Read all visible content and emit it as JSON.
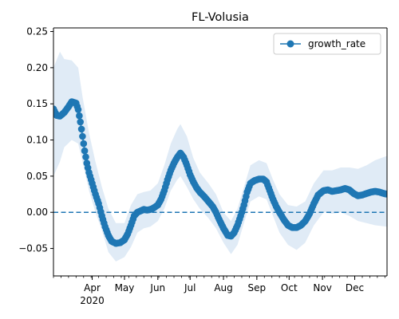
{
  "chart_data": {
    "type": "line",
    "title": "FL-Volusia",
    "xlabel": "",
    "ylabel": "",
    "x_range": [
      "2020-02-25",
      "2020-12-31"
    ],
    "ylim": [
      -0.088,
      0.255
    ],
    "grid": false,
    "legend": {
      "placement": "top-right",
      "entries": [
        "growth_rate"
      ]
    },
    "colors": {
      "series": "#1f77b4",
      "band": "#c6dbef",
      "zero_line": "#1f77b4"
    },
    "y_ticks": [
      -0.05,
      0.0,
      0.05,
      0.1,
      0.15,
      0.2,
      0.25
    ],
    "y_tick_labels": [
      "−0.05",
      "0.00",
      "0.05",
      "0.10",
      "0.15",
      "0.20",
      "0.25"
    ],
    "x_ticks": [
      {
        "date": "2020-04-01",
        "label": "Apr",
        "sublabel": "2020"
      },
      {
        "date": "2020-05-01",
        "label": "May"
      },
      {
        "date": "2020-06-01",
        "label": "Jun"
      },
      {
        "date": "2020-07-01",
        "label": "Jul"
      },
      {
        "date": "2020-08-01",
        "label": "Aug"
      },
      {
        "date": "2020-09-01",
        "label": "Sep"
      },
      {
        "date": "2020-10-01",
        "label": "Oct"
      },
      {
        "date": "2020-11-01",
        "label": "Nov"
      },
      {
        "date": "2020-12-01",
        "label": "Dec"
      }
    ],
    "reference_line": {
      "y": 0.0,
      "style": "dashed"
    },
    "series": [
      {
        "name": "growth_rate",
        "style": "line-with-markers",
        "points": [
          [
            "2020-02-25",
            0.143
          ],
          [
            "2020-02-28",
            0.134
          ],
          [
            "2020-03-02",
            0.133
          ],
          [
            "2020-03-06",
            0.138
          ],
          [
            "2020-03-10",
            0.146
          ],
          [
            "2020-03-13",
            0.153
          ],
          [
            "2020-03-17",
            0.151
          ],
          [
            "2020-03-19",
            0.142
          ],
          [
            "2020-03-21",
            0.125
          ],
          [
            "2020-03-23",
            0.105
          ],
          [
            "2020-03-25",
            0.085
          ],
          [
            "2020-03-27",
            0.068
          ],
          [
            "2020-03-29",
            0.055
          ],
          [
            "2020-04-01",
            0.04
          ],
          [
            "2020-04-04",
            0.025
          ],
          [
            "2020-04-07",
            0.012
          ],
          [
            "2020-04-10",
            -0.005
          ],
          [
            "2020-04-13",
            -0.02
          ],
          [
            "2020-04-16",
            -0.032
          ],
          [
            "2020-04-19",
            -0.04
          ],
          [
            "2020-04-23",
            -0.043
          ],
          [
            "2020-04-27",
            -0.042
          ],
          [
            "2020-05-01",
            -0.038
          ],
          [
            "2020-05-04",
            -0.03
          ],
          [
            "2020-05-07",
            -0.018
          ],
          [
            "2020-05-10",
            -0.005
          ],
          [
            "2020-05-13",
            0.0
          ],
          [
            "2020-05-16",
            0.002
          ],
          [
            "2020-05-19",
            0.004
          ],
          [
            "2020-05-22",
            0.003
          ],
          [
            "2020-05-25",
            0.004
          ],
          [
            "2020-05-28",
            0.006
          ],
          [
            "2020-06-01",
            0.01
          ],
          [
            "2020-06-04",
            0.018
          ],
          [
            "2020-06-07",
            0.03
          ],
          [
            "2020-06-10",
            0.045
          ],
          [
            "2020-06-13",
            0.058
          ],
          [
            "2020-06-16",
            0.068
          ],
          [
            "2020-06-19",
            0.076
          ],
          [
            "2020-06-22",
            0.082
          ],
          [
            "2020-06-25",
            0.076
          ],
          [
            "2020-06-28",
            0.065
          ],
          [
            "2020-07-01",
            0.052
          ],
          [
            "2020-07-04",
            0.042
          ],
          [
            "2020-07-07",
            0.034
          ],
          [
            "2020-07-10",
            0.028
          ],
          [
            "2020-07-14",
            0.022
          ],
          [
            "2020-07-18",
            0.015
          ],
          [
            "2020-07-22",
            0.008
          ],
          [
            "2020-07-25",
            0.0
          ],
          [
            "2020-07-28",
            -0.01
          ],
          [
            "2020-08-01",
            -0.022
          ],
          [
            "2020-08-05",
            -0.032
          ],
          [
            "2020-08-08",
            -0.033
          ],
          [
            "2020-08-11",
            -0.028
          ],
          [
            "2020-08-14",
            -0.018
          ],
          [
            "2020-08-17",
            -0.005
          ],
          [
            "2020-08-20",
            0.01
          ],
          [
            "2020-08-23",
            0.028
          ],
          [
            "2020-08-26",
            0.04
          ],
          [
            "2020-08-30",
            0.044
          ],
          [
            "2020-09-03",
            0.046
          ],
          [
            "2020-09-07",
            0.046
          ],
          [
            "2020-09-10",
            0.042
          ],
          [
            "2020-09-13",
            0.03
          ],
          [
            "2020-09-16",
            0.018
          ],
          [
            "2020-09-19",
            0.008
          ],
          [
            "2020-09-22",
            0.0
          ],
          [
            "2020-09-26",
            -0.01
          ],
          [
            "2020-09-30",
            -0.018
          ],
          [
            "2020-10-04",
            -0.021
          ],
          [
            "2020-10-08",
            -0.021
          ],
          [
            "2020-10-12",
            -0.018
          ],
          [
            "2020-10-16",
            -0.012
          ],
          [
            "2020-10-20",
            -0.002
          ],
          [
            "2020-10-24",
            0.012
          ],
          [
            "2020-10-28",
            0.024
          ],
          [
            "2020-11-02",
            0.03
          ],
          [
            "2020-11-06",
            0.031
          ],
          [
            "2020-11-10",
            0.029
          ],
          [
            "2020-11-14",
            0.03
          ],
          [
            "2020-11-18",
            0.031
          ],
          [
            "2020-11-22",
            0.033
          ],
          [
            "2020-11-26",
            0.031
          ],
          [
            "2020-11-30",
            0.026
          ],
          [
            "2020-12-04",
            0.023
          ],
          [
            "2020-12-08",
            0.024
          ],
          [
            "2020-12-12",
            0.026
          ],
          [
            "2020-12-16",
            0.028
          ],
          [
            "2020-12-20",
            0.029
          ],
          [
            "2020-12-24",
            0.028
          ],
          [
            "2020-12-28",
            0.026
          ],
          [
            "2020-12-31",
            0.025
          ]
        ],
        "uncertainty_band": [
          [
            "2020-02-25",
            0.05,
            0.2
          ],
          [
            "2020-03-02",
            0.07,
            0.222
          ],
          [
            "2020-03-06",
            0.09,
            0.212
          ],
          [
            "2020-03-13",
            0.1,
            0.21
          ],
          [
            "2020-03-19",
            0.095,
            0.2
          ],
          [
            "2020-03-23",
            0.07,
            0.16
          ],
          [
            "2020-03-29",
            0.03,
            0.11
          ],
          [
            "2020-04-04",
            0.0,
            0.07
          ],
          [
            "2020-04-10",
            -0.025,
            0.035
          ],
          [
            "2020-04-16",
            -0.055,
            0.005
          ],
          [
            "2020-04-23",
            -0.068,
            -0.015
          ],
          [
            "2020-05-01",
            -0.062,
            -0.015
          ],
          [
            "2020-05-07",
            -0.048,
            0.01
          ],
          [
            "2020-05-13",
            -0.028,
            0.025
          ],
          [
            "2020-05-19",
            -0.022,
            0.028
          ],
          [
            "2020-05-25",
            -0.02,
            0.03
          ],
          [
            "2020-06-01",
            -0.012,
            0.04
          ],
          [
            "2020-06-07",
            0.005,
            0.065
          ],
          [
            "2020-06-13",
            0.03,
            0.095
          ],
          [
            "2020-06-19",
            0.045,
            0.115
          ],
          [
            "2020-06-22",
            0.05,
            0.122
          ],
          [
            "2020-06-28",
            0.035,
            0.105
          ],
          [
            "2020-07-04",
            0.018,
            0.075
          ],
          [
            "2020-07-10",
            0.005,
            0.055
          ],
          [
            "2020-07-18",
            -0.008,
            0.04
          ],
          [
            "2020-07-25",
            -0.022,
            0.025
          ],
          [
            "2020-08-01",
            -0.042,
            0.0
          ],
          [
            "2020-08-08",
            -0.058,
            -0.012
          ],
          [
            "2020-08-14",
            -0.045,
            0.005
          ],
          [
            "2020-08-20",
            -0.015,
            0.035
          ],
          [
            "2020-08-26",
            0.015,
            0.065
          ],
          [
            "2020-09-03",
            0.022,
            0.072
          ],
          [
            "2020-09-10",
            0.018,
            0.068
          ],
          [
            "2020-09-16",
            -0.005,
            0.045
          ],
          [
            "2020-09-22",
            -0.028,
            0.025
          ],
          [
            "2020-09-30",
            -0.045,
            0.01
          ],
          [
            "2020-10-08",
            -0.052,
            0.008
          ],
          [
            "2020-10-16",
            -0.042,
            0.015
          ],
          [
            "2020-10-24",
            -0.018,
            0.04
          ],
          [
            "2020-11-02",
            0.0,
            0.058
          ],
          [
            "2020-11-10",
            -0.002,
            0.058
          ],
          [
            "2020-11-18",
            0.0,
            0.062
          ],
          [
            "2020-11-26",
            -0.005,
            0.062
          ],
          [
            "2020-12-04",
            -0.012,
            0.06
          ],
          [
            "2020-12-12",
            -0.015,
            0.065
          ],
          [
            "2020-12-20",
            -0.018,
            0.072
          ],
          [
            "2020-12-31",
            -0.02,
            0.078
          ]
        ]
      }
    ]
  }
}
